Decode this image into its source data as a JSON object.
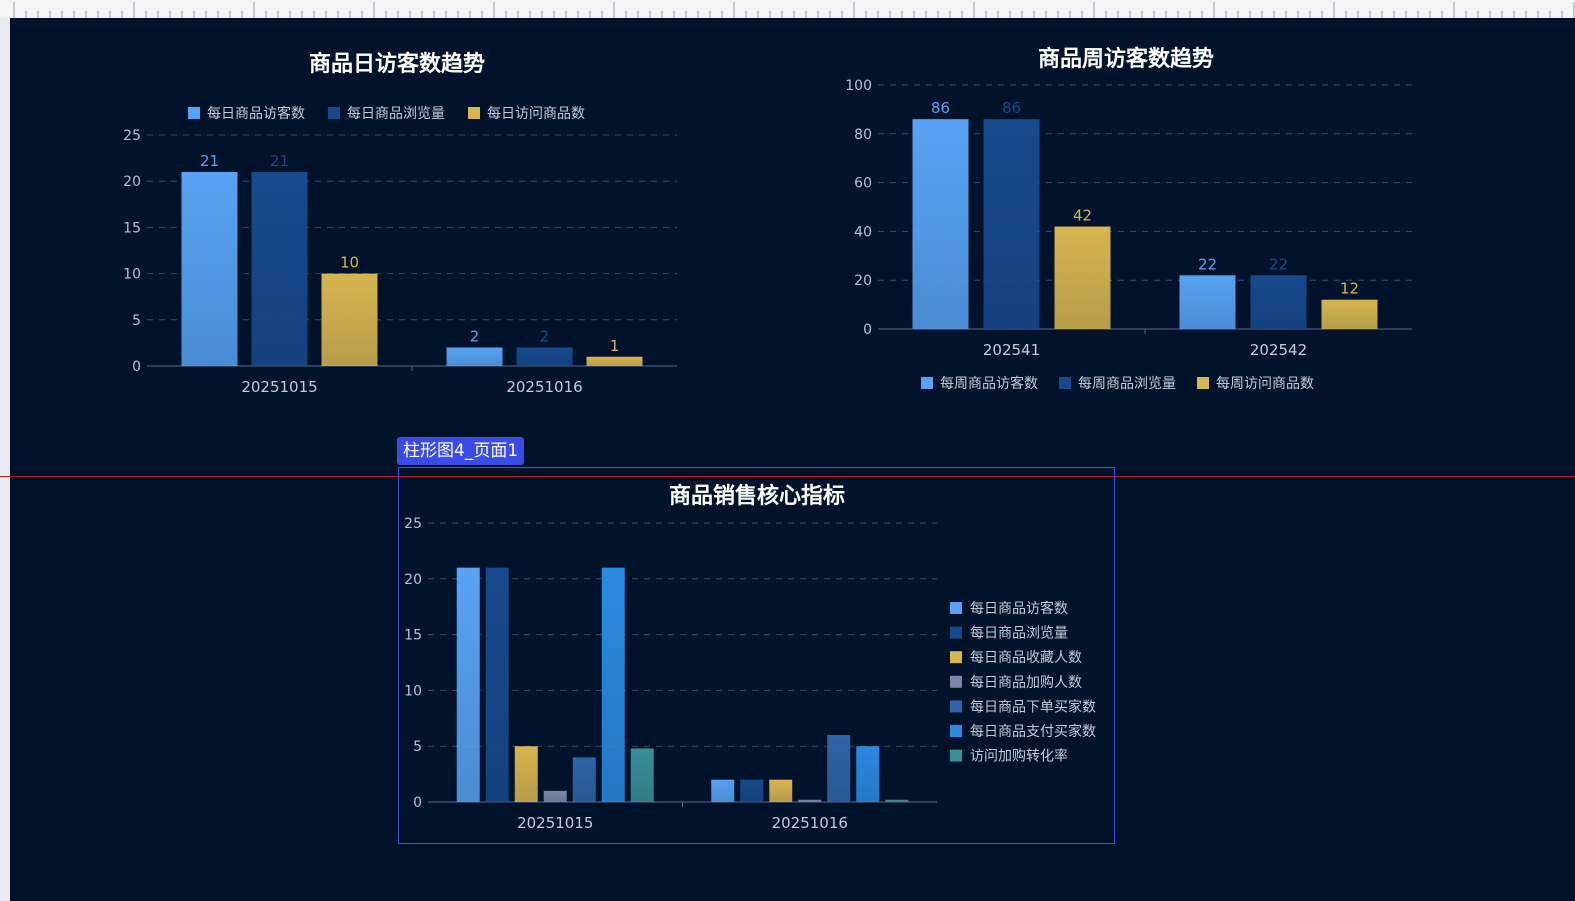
{
  "editor": {
    "selected_component_label": "柱形图4_页面1"
  },
  "colors": {
    "canvas_bg": "#01122b",
    "series": [
      "#57a2f2",
      "#174a8d",
      "#d7b54f",
      "#7a85a8",
      "#2f64a8",
      "#2a8ae0",
      "#3a8f96"
    ]
  },
  "chart_data": [
    {
      "id": "daily",
      "type": "bar",
      "title": "商品日访客数趋势",
      "categories": [
        "20251015",
        "20251016"
      ],
      "series": [
        {
          "name": "每日商品访客数",
          "values": [
            21,
            2
          ]
        },
        {
          "name": "每日商品浏览量",
          "values": [
            21,
            2
          ]
        },
        {
          "name": "每日访问商品数",
          "values": [
            10,
            1
          ]
        }
      ],
      "ylim": [
        0,
        25
      ],
      "yticks": [
        0,
        5,
        10,
        15,
        20,
        25
      ],
      "grid": true,
      "data_labels": true,
      "legend_position": "top"
    },
    {
      "id": "weekly",
      "type": "bar",
      "title": "商品周访客数趋势",
      "categories": [
        "202541",
        "202542"
      ],
      "series": [
        {
          "name": "每周商品访客数",
          "values": [
            86,
            22
          ]
        },
        {
          "name": "每周商品浏览量",
          "values": [
            86,
            22
          ]
        },
        {
          "name": "每周访问商品数",
          "values": [
            42,
            12
          ]
        }
      ],
      "ylim": [
        0,
        100
      ],
      "yticks": [
        0,
        20,
        40,
        60,
        80,
        100
      ],
      "grid": true,
      "data_labels": true,
      "legend_position": "bottom"
    },
    {
      "id": "core",
      "type": "bar",
      "title": "商品销售核心指标",
      "categories": [
        "20251015",
        "20251016"
      ],
      "series": [
        {
          "name": "每日商品访客数",
          "values": [
            21,
            2
          ]
        },
        {
          "name": "每日商品浏览量",
          "values": [
            21,
            2
          ]
        },
        {
          "name": "每日商品收藏人数",
          "values": [
            5,
            2
          ]
        },
        {
          "name": "每日商品加购人数",
          "values": [
            1,
            0.2
          ]
        },
        {
          "name": "每日商品下单买家数",
          "values": [
            4,
            6
          ]
        },
        {
          "name": "每日商品支付买家数",
          "values": [
            21,
            5
          ]
        },
        {
          "name": "访问加购转化率",
          "values": [
            4.8,
            0.2
          ]
        }
      ],
      "ylim": [
        0,
        25
      ],
      "yticks": [
        0,
        5,
        10,
        15,
        20,
        25
      ],
      "grid": true,
      "data_labels": false,
      "legend_position": "right"
    }
  ]
}
